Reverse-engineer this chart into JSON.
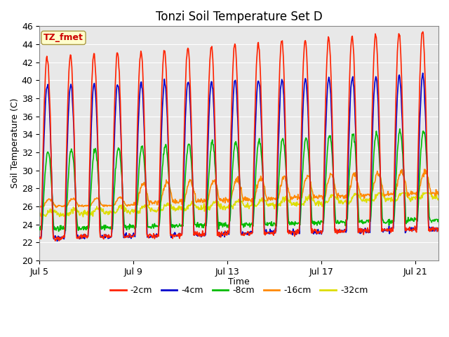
{
  "title": "Tonzi Soil Temperature Set D",
  "xlabel": "Time",
  "ylabel": "Soil Temperature (C)",
  "ylim": [
    20,
    46
  ],
  "n_days": 17,
  "xtick_labels": [
    "Jul 5",
    "Jul 9",
    "Jul 13",
    "Jul 17",
    "Jul 21"
  ],
  "xtick_positions": [
    0,
    4,
    8,
    12,
    16
  ],
  "annotation_text": "TZ_fmet",
  "annotation_color": "#cc0000",
  "annotation_bg": "#ffffcc",
  "annotation_border": "#aa9944",
  "line_colors": {
    "-2cm": "#ff2200",
    "-4cm": "#0000cc",
    "-8cm": "#00bb00",
    "-16cm": "#ff8800",
    "-32cm": "#dddd00"
  },
  "line_widths": {
    "-2cm": 1.2,
    "-4cm": 1.2,
    "-8cm": 1.2,
    "-16cm": 1.2,
    "-32cm": 1.2
  },
  "legend_labels": [
    "-2cm",
    "-4cm",
    "-8cm",
    "-16cm",
    "-32cm"
  ],
  "plot_bg_color": "#e8e8e8",
  "fig_bg_color": "#ffffff",
  "grid_color": "#ffffff",
  "title_fontsize": 12,
  "axis_fontsize": 9,
  "tick_fontsize": 9
}
